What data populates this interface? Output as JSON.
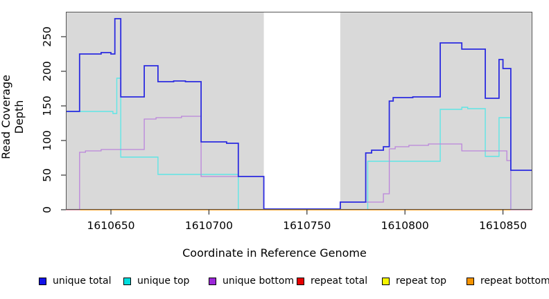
{
  "chart_data": {
    "type": "line",
    "step": true,
    "title": "",
    "xlabel": "Coordinate in Reference Genome",
    "ylabel": "Read Coverage Depth",
    "xlim": [
      1610627,
      1610865
    ],
    "ylim": [
      0,
      286
    ],
    "x_ticks": [
      1610650,
      1610700,
      1610750,
      1610800,
      1610850
    ],
    "y_ticks": [
      0,
      50,
      100,
      150,
      200,
      250
    ],
    "grid": false,
    "plot_bg": "#d9d9d9",
    "gap_region": {
      "from": 1610728,
      "to": 1610767,
      "color": "#ffffff"
    },
    "legend_position": "bottom",
    "series": [
      {
        "name": "unique total",
        "color": "#2b2be0",
        "legend_color": "#1212e8",
        "width": 1.8,
        "steps": [
          [
            1610627,
            142
          ],
          [
            1610634,
            225
          ],
          [
            1610645,
            227
          ],
          [
            1610650,
            225
          ],
          [
            1610652,
            276
          ],
          [
            1610655,
            163
          ],
          [
            1610667,
            208
          ],
          [
            1610674,
            185
          ],
          [
            1610682,
            186
          ],
          [
            1610688,
            185
          ],
          [
            1610696,
            98
          ],
          [
            1610709,
            96
          ],
          [
            1610715,
            48
          ],
          [
            1610728,
            1
          ],
          [
            1610767,
            11
          ],
          [
            1610780,
            82
          ],
          [
            1610783,
            86
          ],
          [
            1610789,
            91
          ],
          [
            1610792,
            157
          ],
          [
            1610794,
            162
          ],
          [
            1610804,
            163
          ],
          [
            1610818,
            241
          ],
          [
            1610829,
            232
          ],
          [
            1610841,
            161
          ],
          [
            1610848,
            217
          ],
          [
            1610850,
            204
          ],
          [
            1610854,
            57
          ]
        ]
      },
      {
        "name": "unique top",
        "color": "#5fe6e6",
        "legend_color": "#00dddd",
        "width": 1.4,
        "steps": [
          [
            1610627,
            142
          ],
          [
            1610651,
            139
          ],
          [
            1610653,
            190
          ],
          [
            1610655,
            76
          ],
          [
            1610674,
            51
          ],
          [
            1610715,
            0
          ],
          [
            1610781,
            70
          ],
          [
            1610818,
            145
          ],
          [
            1610829,
            148
          ],
          [
            1610832,
            146
          ],
          [
            1610841,
            77
          ],
          [
            1610848,
            133
          ],
          [
            1610854,
            0
          ]
        ]
      },
      {
        "name": "unique bottom",
        "color": "#bb84dc",
        "legend_color": "#9c27d9",
        "width": 1.3,
        "steps": [
          [
            1610627,
            0
          ],
          [
            1610634,
            83
          ],
          [
            1610637,
            85
          ],
          [
            1610645,
            87
          ],
          [
            1610667,
            131
          ],
          [
            1610673,
            133
          ],
          [
            1610686,
            135
          ],
          [
            1610696,
            48
          ],
          [
            1610728,
            1
          ],
          [
            1610767,
            11
          ],
          [
            1610789,
            23
          ],
          [
            1610792,
            88
          ],
          [
            1610795,
            91
          ],
          [
            1610802,
            93
          ],
          [
            1610812,
            95
          ],
          [
            1610829,
            85
          ],
          [
            1610852,
            71
          ],
          [
            1610854,
            0
          ]
        ]
      },
      {
        "name": "repeat total",
        "color": "#e00000",
        "legend_color": "#e60000",
        "width": 1.3,
        "steps": [
          [
            1610627,
            0
          ]
        ]
      },
      {
        "name": "repeat top",
        "color": "#f2f200",
        "legend_color": "#f5f500",
        "width": 1.3,
        "steps": [
          [
            1610627,
            0
          ]
        ]
      },
      {
        "name": "repeat bottom",
        "color": "#ff9714",
        "legend_color": "#f59300",
        "width": 1.8,
        "steps": [
          [
            1610627,
            0
          ]
        ]
      }
    ],
    "draw_order": [
      3,
      4,
      1,
      5,
      2,
      0
    ]
  },
  "legend": {
    "items": [
      {
        "label": "unique total"
      },
      {
        "label": "unique top"
      },
      {
        "label": "unique bottom"
      },
      {
        "label": "repeat total"
      },
      {
        "label": "repeat top"
      },
      {
        "label": "repeat bottom"
      }
    ]
  }
}
